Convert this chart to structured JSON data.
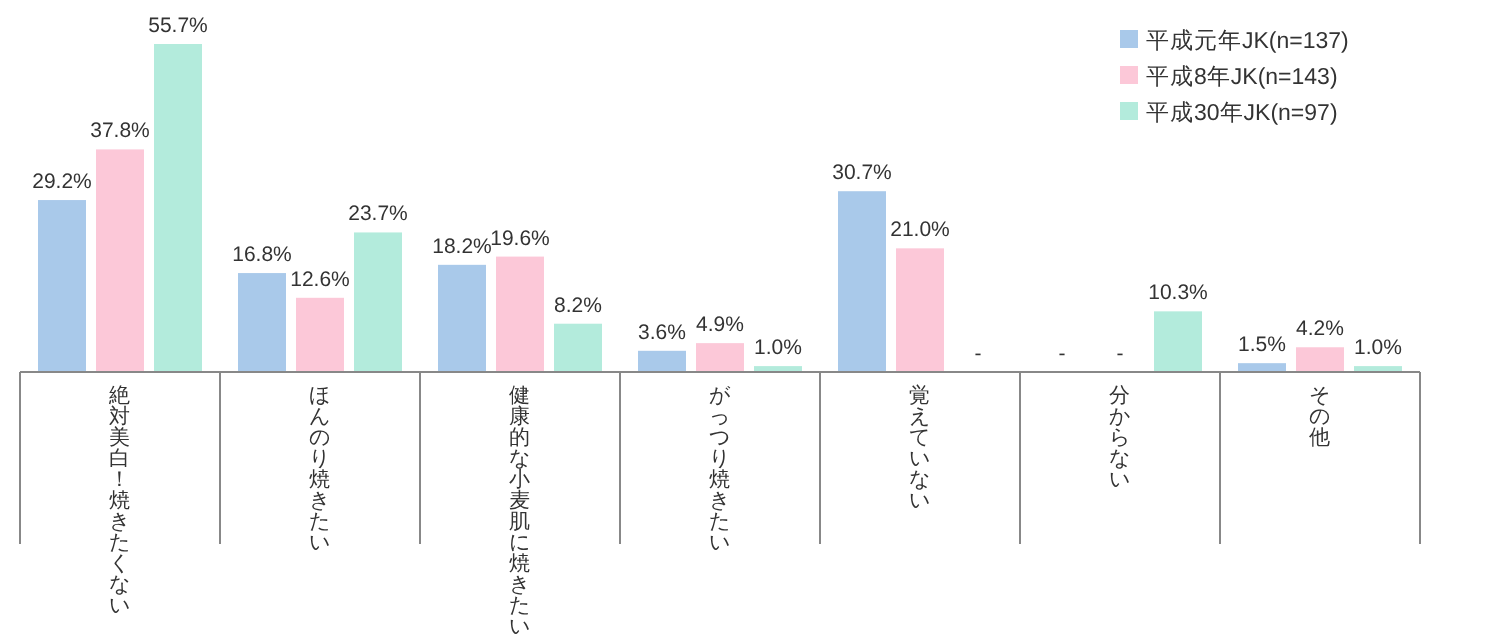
{
  "chart_data": {
    "type": "bar",
    "categories": [
      "絶対美白！焼きたくない",
      "ほんのり焼きたい",
      "健康的な小麦肌に焼きたい",
      "がっつり焼きたい",
      "覚えていない",
      "分からない",
      "その他"
    ],
    "series": [
      {
        "name": "平成元年JK(n=137)",
        "color": "#a9c9ea",
        "values": [
          29.2,
          16.8,
          18.2,
          3.6,
          30.7,
          null,
          1.5
        ],
        "value_labels": [
          "29.2%",
          "16.8%",
          "18.2%",
          "3.6%",
          "30.7%",
          "-",
          "1.5%"
        ]
      },
      {
        "name": "平成8年JK(n=143)",
        "color": "#fcc8d8",
        "values": [
          37.8,
          12.6,
          19.6,
          4.9,
          21.0,
          null,
          4.2
        ],
        "value_labels": [
          "37.8%",
          "12.6%",
          "19.6%",
          "4.9%",
          "21.0%",
          "-",
          "4.2%"
        ]
      },
      {
        "name": "平成30年JK(n=97)",
        "color": "#b3ebdc",
        "values": [
          55.7,
          23.7,
          8.2,
          1.0,
          null,
          10.3,
          1.0
        ],
        "value_labels": [
          "55.7%",
          "23.7%",
          "8.2%",
          "1.0%",
          "-",
          "10.3%",
          "1.0%"
        ]
      }
    ],
    "legend": "top right"
  }
}
